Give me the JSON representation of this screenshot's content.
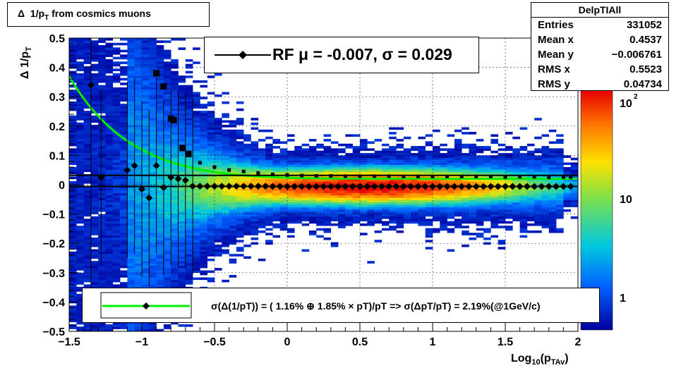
{
  "title": "Δ 1/p_T from cosmics muons",
  "axes": {
    "ylabel": "Δ 1/p_T",
    "xlabel": "Log_10(p_TAv)",
    "xticks": [
      "−1.5",
      "−1",
      "−0.5",
      "0",
      "0.5",
      "1",
      "1.5",
      "2"
    ],
    "yticks": [
      "0.5",
      "0.4",
      "0.3",
      "0.2",
      "0.1",
      "0",
      "−0.1",
      "−0.2",
      "−0.3",
      "−0.4",
      "−0.5"
    ],
    "zticks": [
      "10",
      "10",
      "1"
    ],
    "zsup": "2"
  },
  "stats": {
    "name": "DelpTIAll",
    "rows": [
      {
        "label": "Entries",
        "value": "331052"
      },
      {
        "label": "Mean x",
        "value": "0.4537"
      },
      {
        "label": "Mean y",
        "value": "−0.006761"
      },
      {
        "label": "RMS x",
        "value": "0.5523"
      },
      {
        "label": "RMS y",
        "value": "0.04734"
      }
    ]
  },
  "legend_rf": "RF μ = -0.007, σ =   0.029",
  "legend_fit": "σ(Δ(1/pT)) = ( 1.16% ⊕  1.85% × pT)/pT => σ(ΔpT/pT) =  2.19%(@1GeV/c)",
  "colors": {
    "fit_curve": "#00ee00",
    "markers": "#000000",
    "hist_core": "#ff2a00"
  },
  "chart_data": {
    "type": "heatmap",
    "title": "Δ 1/p_T from cosmics muons",
    "xlabel": "Log_10(p_TAv)",
    "ylabel": "Δ 1/p_T",
    "xlim": [
      -1.5,
      2
    ],
    "ylim": [
      -0.5,
      0.5
    ],
    "z_scale": "log",
    "zlim": [
      0.5,
      300
    ],
    "grid": true,
    "legend_placement": "top-center",
    "mean_line": 0.032,
    "fit_sigma": [
      0.0116,
      0.0185
    ],
    "mean_profile": {
      "x": [
        -1.28,
        -1.1,
        -1.05,
        -1.0,
        -0.95,
        -0.9,
        -0.85,
        -0.8,
        -0.75,
        -0.7,
        -0.65,
        -0.6,
        -0.55,
        -0.5,
        -0.45,
        -0.4,
        -0.35,
        -0.3,
        -0.25,
        -0.2,
        -0.15,
        -0.1,
        -0.05,
        0.0,
        0.05,
        0.1,
        0.15,
        0.2,
        0.25,
        0.3,
        0.35,
        0.4,
        0.45,
        0.5,
        0.55,
        0.6,
        0.65,
        0.7,
        0.75,
        0.8,
        0.85,
        0.9,
        0.95,
        1.0,
        1.05,
        1.1,
        1.15,
        1.2,
        1.25,
        1.3,
        1.35,
        1.4,
        1.45,
        1.5,
        1.55,
        1.6,
        1.65,
        1.7,
        1.75,
        1.8,
        1.85,
        1.9,
        1.95
      ],
      "y": [
        0.025,
        0.05,
        0.065,
        -0.015,
        -0.045,
        0.065,
        -0.01,
        0.025,
        0.02,
        0.015,
        -0.005,
        -0.005,
        -0.005,
        -0.005,
        -0.005,
        -0.005,
        -0.005,
        -0.005,
        -0.005,
        -0.005,
        -0.005,
        -0.006,
        -0.006,
        -0.006,
        -0.006,
        -0.006,
        -0.006,
        -0.006,
        -0.006,
        -0.006,
        -0.006,
        -0.006,
        -0.006,
        -0.006,
        -0.006,
        -0.006,
        -0.006,
        -0.006,
        -0.006,
        -0.006,
        -0.006,
        -0.006,
        -0.006,
        -0.006,
        -0.006,
        -0.006,
        -0.006,
        -0.006,
        -0.006,
        -0.006,
        -0.006,
        -0.006,
        -0.006,
        -0.006,
        -0.006,
        -0.006,
        -0.006,
        -0.006,
        -0.006,
        -0.006,
        -0.006,
        -0.006,
        -0.006
      ]
    },
    "sigma_profile": {
      "x": [
        -0.9,
        -0.85,
        -0.8,
        -0.78,
        -0.72,
        -0.68,
        -0.6,
        -0.5,
        -0.4,
        -0.3,
        -0.2,
        -0.1,
        0.0,
        0.1,
        0.2,
        0.3,
        0.4,
        0.5,
        0.6,
        0.7,
        0.8,
        0.9,
        1.0,
        1.1,
        1.2,
        1.3,
        1.4,
        1.5,
        1.6,
        1.7,
        1.8,
        1.9,
        1.95
      ],
      "y": [
        0.38,
        0.335,
        0.225,
        0.22,
        0.125,
        0.105,
        0.075,
        0.06,
        0.05,
        0.045,
        0.04,
        0.035,
        0.033,
        0.031,
        0.03,
        0.03,
        0.029,
        0.029,
        0.029,
        0.029,
        0.028,
        0.028,
        0.028,
        0.028,
        0.028,
        0.028,
        0.028,
        0.026,
        0.027,
        0.027,
        0.025,
        0.026,
        0.026
      ]
    },
    "outlier_points": {
      "x": [
        -1.35
      ],
      "y": [
        0.34
      ]
    }
  }
}
